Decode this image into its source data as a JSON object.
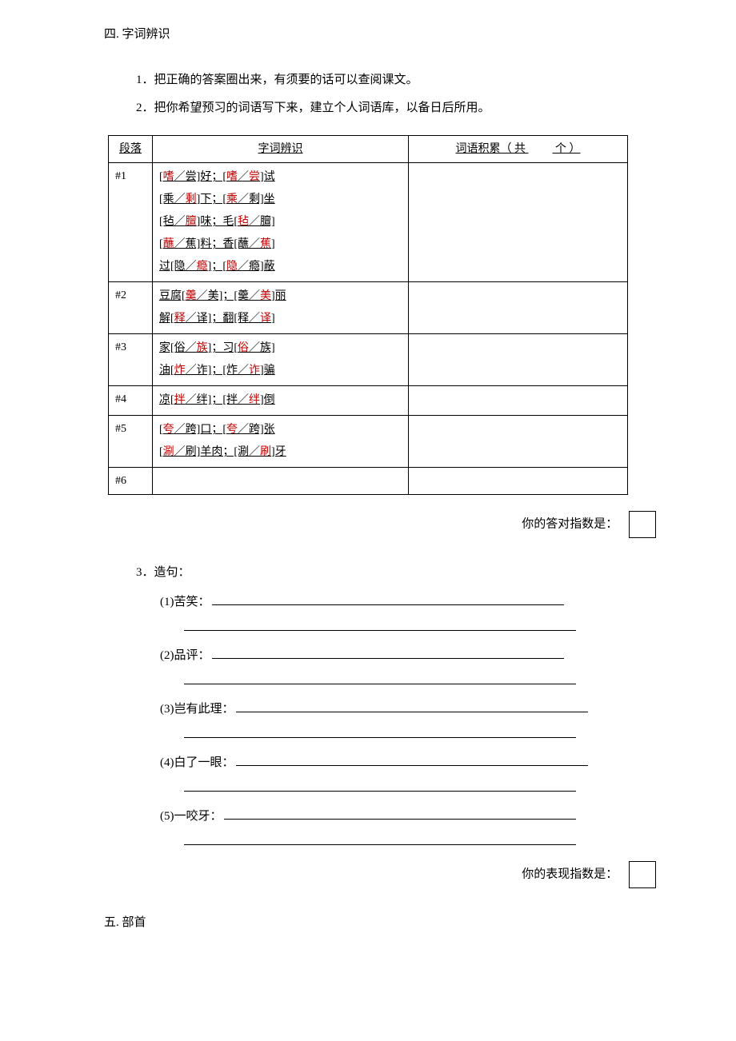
{
  "section4": {
    "heading": "四. 字词辨识",
    "instructions": [
      "1．把正确的答案圈出来，有须要的话可以查阅课文。",
      "2．把你希望预习的词语写下来，建立个人词语库，以备日后所用。"
    ],
    "table": {
      "headers": {
        "segment": "段落",
        "words": "字词辨识",
        "accum_prefix": "词语积累（ 共",
        "accum_suffix": "个 ）"
      },
      "rows": [
        {
          "seg": "#1",
          "lines": [
            [
              {
                "t": "["
              },
              {
                "t": "嗜",
                "r": 1
              },
              {
                "t": "／尝]好；["
              },
              {
                "t": "嗜",
                "r": 1
              },
              {
                "t": "／"
              },
              {
                "t": "尝",
                "r": 1
              },
              {
                "t": "]试"
              }
            ],
            [
              {
                "t": "[乘／"
              },
              {
                "t": "剩",
                "r": 1
              },
              {
                "t": "]下；["
              },
              {
                "t": "乘",
                "r": 1
              },
              {
                "t": "／剩]坐"
              }
            ],
            [
              {
                "t": "[毡／"
              },
              {
                "t": "膻",
                "r": 1
              },
              {
                "t": "]味；毛["
              },
              {
                "t": "毡",
                "r": 1
              },
              {
                "t": "／膻]"
              }
            ],
            [
              {
                "t": "["
              },
              {
                "t": "蘸",
                "r": 1
              },
              {
                "t": "／蕉]料；香[蘸／"
              },
              {
                "t": "蕉",
                "r": 1
              },
              {
                "t": "]"
              }
            ],
            [
              {
                "t": "过[隐／"
              },
              {
                "t": "瘾",
                "r": 1
              },
              {
                "t": "]；["
              },
              {
                "t": "隐",
                "r": 1
              },
              {
                "t": "／瘾]蔽"
              }
            ]
          ]
        },
        {
          "seg": "#2",
          "lines": [
            [
              {
                "t": "豆腐["
              },
              {
                "t": "羹",
                "r": 1
              },
              {
                "t": "／美]；[羹／"
              },
              {
                "t": "美",
                "r": 1
              },
              {
                "t": "]丽"
              }
            ],
            [
              {
                "t": "解["
              },
              {
                "t": "释",
                "r": 1
              },
              {
                "t": "／译]；翻[释／"
              },
              {
                "t": "译",
                "r": 1
              },
              {
                "t": "]"
              }
            ]
          ]
        },
        {
          "seg": "#3",
          "lines": [
            [
              {
                "t": "家[俗／"
              },
              {
                "t": "族",
                "r": 1
              },
              {
                "t": "]；习["
              },
              {
                "t": "俗",
                "r": 1
              },
              {
                "t": "／族]"
              }
            ],
            [
              {
                "t": "油["
              },
              {
                "t": "炸",
                "r": 1
              },
              {
                "t": "／诈]；[炸／"
              },
              {
                "t": "诈",
                "r": 1
              },
              {
                "t": "]骗"
              }
            ]
          ]
        },
        {
          "seg": "#4",
          "lines": [
            [
              {
                "t": "凉["
              },
              {
                "t": "拌",
                "r": 1
              },
              {
                "t": "／绊]；[拌／"
              },
              {
                "t": "绊",
                "r": 1
              },
              {
                "t": "]倒"
              }
            ]
          ]
        },
        {
          "seg": "#5",
          "lines": [
            [
              {
                "t": "["
              },
              {
                "t": "夸",
                "r": 1
              },
              {
                "t": "／跨]口；["
              },
              {
                "t": "夸",
                "r": 1
              },
              {
                "t": "／跨]张"
              }
            ],
            [
              {
                "t": "["
              },
              {
                "t": "涮",
                "r": 1
              },
              {
                "t": "／刷]羊肉；[涮／"
              },
              {
                "t": "刷",
                "r": 1
              },
              {
                "t": "]牙"
              }
            ]
          ]
        },
        {
          "seg": "#6",
          "lines": [
            [
              {
                "t": " "
              }
            ]
          ]
        }
      ]
    },
    "score_label_1": "你的答对指数是：",
    "sentence_heading": "3．造句：",
    "sentences": [
      "(1)苦笑：",
      "(2)品评：",
      "(3)岂有此理：",
      "(4)白了一眼：",
      "(5)一咬牙："
    ],
    "score_label_2": "你的表现指数是："
  },
  "section5": {
    "heading": "五. 部首"
  },
  "colors": {
    "text": "#000000",
    "red": "#c00000",
    "background": "#ffffff",
    "border": "#000000"
  }
}
